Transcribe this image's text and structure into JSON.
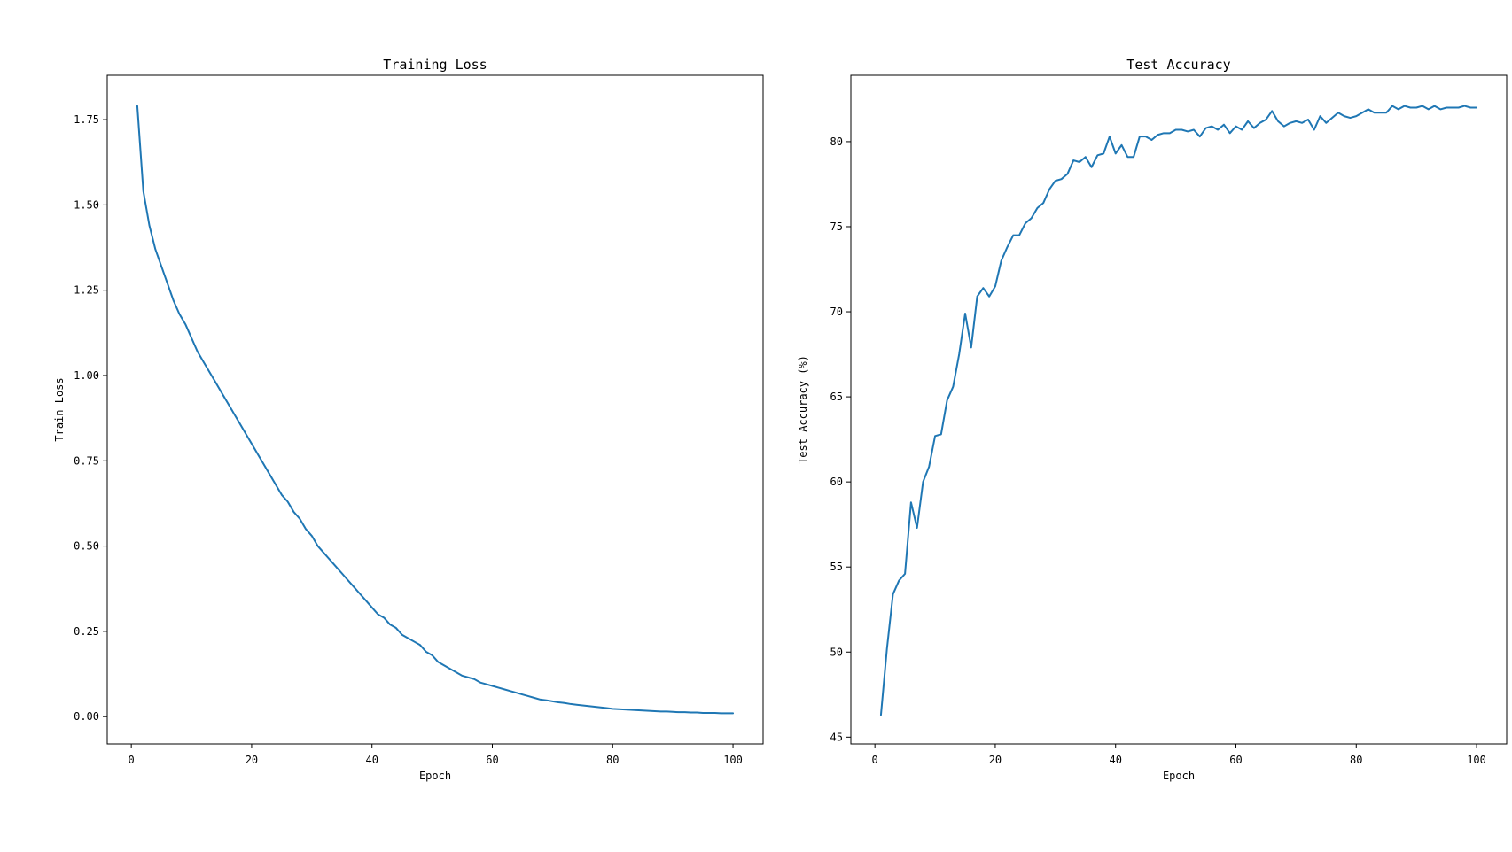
{
  "chart_data": [
    {
      "type": "line",
      "title": "Training Loss",
      "xlabel": "Epoch",
      "ylabel": "Train Loss",
      "xlim": [
        -4,
        105
      ],
      "ylim": [
        -0.08,
        1.88
      ],
      "xticks": [
        0,
        20,
        40,
        60,
        80,
        100
      ],
      "xtick_labels": [
        "0",
        "20",
        "40",
        "60",
        "80",
        "100"
      ],
      "yticks": [
        0.0,
        0.25,
        0.5,
        0.75,
        1.0,
        1.25,
        1.5,
        1.75
      ],
      "ytick_labels": [
        "0.00",
        "0.25",
        "0.50",
        "0.75",
        "1.00",
        "1.25",
        "1.50",
        "1.75"
      ],
      "grid": false,
      "line_color": "#1f77b4",
      "series": [
        {
          "x": [
            1,
            2,
            3,
            4,
            5,
            6,
            7,
            8,
            9,
            10,
            11,
            12,
            13,
            14,
            15,
            16,
            17,
            18,
            19,
            20,
            21,
            22,
            23,
            24,
            25,
            26,
            27,
            28,
            29,
            30,
            31,
            32,
            33,
            34,
            35,
            36,
            37,
            38,
            39,
            40,
            41,
            42,
            43,
            44,
            45,
            46,
            47,
            48,
            49,
            50,
            51,
            52,
            53,
            54,
            55,
            56,
            57,
            58,
            59,
            60,
            61,
            62,
            63,
            64,
            65,
            66,
            67,
            68,
            69,
            70,
            71,
            72,
            73,
            74,
            75,
            76,
            77,
            78,
            79,
            80,
            81,
            82,
            83,
            84,
            85,
            86,
            87,
            88,
            89,
            90,
            91,
            92,
            93,
            94,
            95,
            96,
            97,
            98,
            99,
            100
          ],
          "values": [
            1.79,
            1.54,
            1.44,
            1.37,
            1.32,
            1.27,
            1.22,
            1.18,
            1.15,
            1.11,
            1.07,
            1.04,
            1.01,
            0.98,
            0.95,
            0.92,
            0.89,
            0.86,
            0.83,
            0.8,
            0.77,
            0.74,
            0.71,
            0.68,
            0.65,
            0.63,
            0.6,
            0.58,
            0.55,
            0.53,
            0.5,
            0.48,
            0.46,
            0.44,
            0.42,
            0.4,
            0.38,
            0.36,
            0.34,
            0.32,
            0.3,
            0.29,
            0.27,
            0.26,
            0.24,
            0.23,
            0.22,
            0.21,
            0.19,
            0.18,
            0.16,
            0.15,
            0.14,
            0.13,
            0.12,
            0.115,
            0.11,
            0.1,
            0.095,
            0.09,
            0.085,
            0.08,
            0.075,
            0.07,
            0.065,
            0.06,
            0.055,
            0.05,
            0.048,
            0.045,
            0.042,
            0.04,
            0.037,
            0.035,
            0.033,
            0.031,
            0.029,
            0.027,
            0.025,
            0.023,
            0.022,
            0.021,
            0.02,
            0.019,
            0.018,
            0.017,
            0.016,
            0.015,
            0.015,
            0.014,
            0.013,
            0.013,
            0.012,
            0.012,
            0.011,
            0.011,
            0.011,
            0.01,
            0.01,
            0.01
          ]
        }
      ]
    },
    {
      "type": "line",
      "title": "Test Accuracy",
      "xlabel": "Epoch",
      "ylabel": "Test Accuracy (%)",
      "xlim": [
        -4,
        105
      ],
      "ylim": [
        44.6,
        83.9
      ],
      "xticks": [
        0,
        20,
        40,
        60,
        80,
        100
      ],
      "xtick_labels": [
        "0",
        "20",
        "40",
        "60",
        "80",
        "100"
      ],
      "yticks": [
        45,
        50,
        55,
        60,
        65,
        70,
        75,
        80
      ],
      "ytick_labels": [
        "45",
        "50",
        "55",
        "60",
        "65",
        "70",
        "75",
        "80"
      ],
      "grid": false,
      "line_color": "#1f77b4",
      "series": [
        {
          "x": [
            1,
            2,
            3,
            4,
            5,
            6,
            7,
            8,
            9,
            10,
            11,
            12,
            13,
            14,
            15,
            16,
            17,
            18,
            19,
            20,
            21,
            22,
            23,
            24,
            25,
            26,
            27,
            28,
            29,
            30,
            31,
            32,
            33,
            34,
            35,
            36,
            37,
            38,
            39,
            40,
            41,
            42,
            43,
            44,
            45,
            46,
            47,
            48,
            49,
            50,
            51,
            52,
            53,
            54,
            55,
            56,
            57,
            58,
            59,
            60,
            61,
            62,
            63,
            64,
            65,
            66,
            67,
            68,
            69,
            70,
            71,
            72,
            73,
            74,
            75,
            76,
            77,
            78,
            79,
            80,
            81,
            82,
            83,
            84,
            85,
            86,
            87,
            88,
            89,
            90,
            91,
            92,
            93,
            94,
            95,
            96,
            97,
            98,
            99,
            100
          ],
          "values": [
            46.3,
            50.2,
            53.4,
            54.2,
            54.6,
            58.8,
            57.3,
            60,
            60.9,
            62.7,
            62.8,
            64.8,
            65.6,
            67.5,
            69.9,
            67.9,
            70.9,
            71.4,
            70.9,
            71.5,
            73,
            73.8,
            74.5,
            74.5,
            75.2,
            75.5,
            76.1,
            76.4,
            77.2,
            77.7,
            77.8,
            78.1,
            78.9,
            78.8,
            79.1,
            78.5,
            79.2,
            79.3,
            80.3,
            79.3,
            79.8,
            79.1,
            79.1,
            80.3,
            80.3,
            80.1,
            80.4,
            80.5,
            80.5,
            80.7,
            80.7,
            80.6,
            80.7,
            80.3,
            80.8,
            80.9,
            80.7,
            81,
            80.5,
            80.9,
            80.7,
            81.2,
            80.8,
            81.1,
            81.3,
            81.8,
            81.2,
            80.9,
            81.1,
            81.2,
            81.1,
            81.3,
            80.7,
            81.5,
            81.1,
            81.4,
            81.7,
            81.5,
            81.4,
            81.5,
            81.7,
            81.9,
            81.7,
            81.7,
            81.7,
            82.1,
            81.9,
            82.1,
            82,
            82,
            82.1,
            81.9,
            82.1,
            81.9,
            82,
            82,
            82,
            82.1,
            82,
            82
          ]
        }
      ]
    }
  ]
}
